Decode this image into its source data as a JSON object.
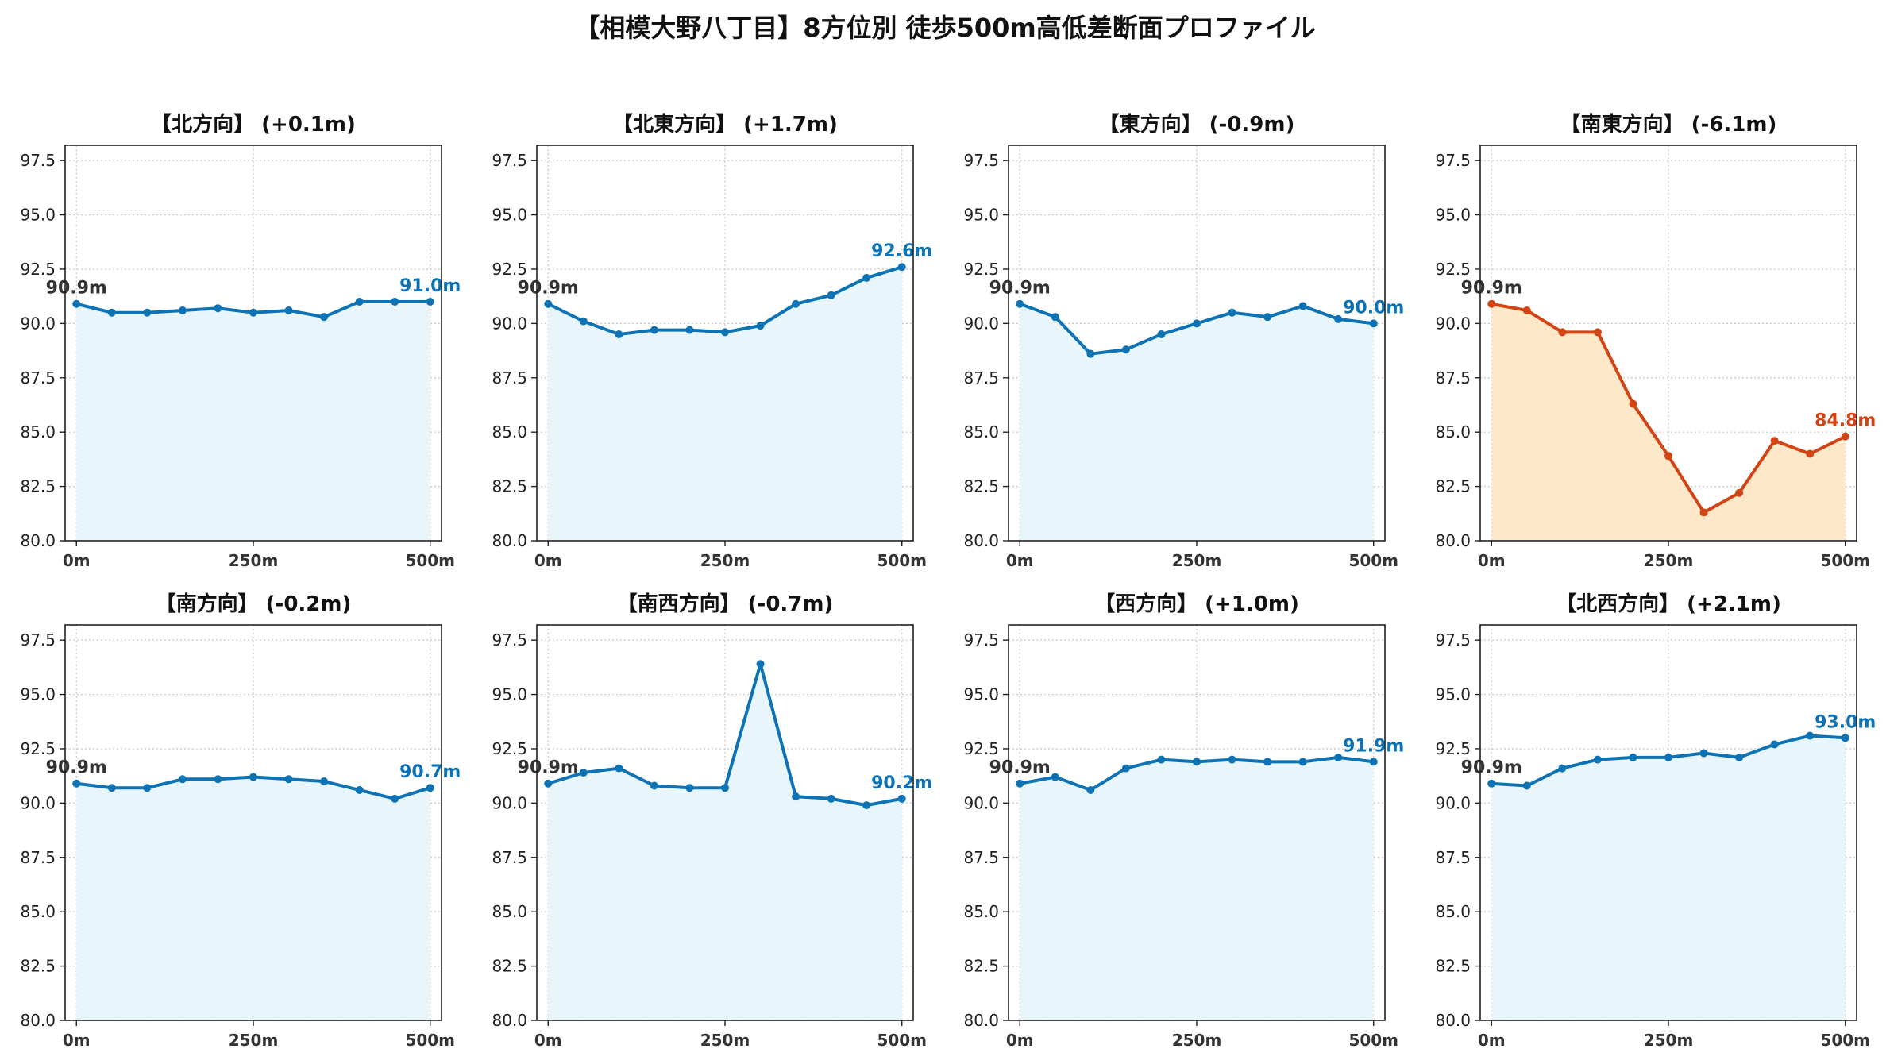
{
  "title": "【相模大野八丁目】8方位別 徒歩500m高低差断面プロファイル",
  "colors": {
    "normal_line": "#0d73b5",
    "normal_fill": "#e8f6fc",
    "alert_line": "#d34415",
    "alert_fill": "#fde8c9",
    "start_label": "#333333"
  },
  "axis": {
    "ylim": [
      80.0,
      98.2
    ],
    "yticks": [
      "80.0",
      "82.5",
      "85.0",
      "87.5",
      "90.0",
      "92.5",
      "95.0",
      "97.5"
    ],
    "ytick_values": [
      80.0,
      82.5,
      85.0,
      87.5,
      90.0,
      92.5,
      95.0,
      97.5
    ],
    "xlim": [
      -16,
      516
    ],
    "xticks": [
      "0m",
      "250m",
      "500m"
    ],
    "xtick_values": [
      0,
      250,
      500
    ],
    "grid": true
  },
  "chart_data": [
    {
      "type": "area",
      "title": "【北方向】 (+0.1m)",
      "alert": false,
      "x": [
        0,
        50,
        100,
        150,
        200,
        250,
        300,
        350,
        400,
        450,
        500
      ],
      "values": [
        90.9,
        90.5,
        90.5,
        90.6,
        90.7,
        90.5,
        90.6,
        90.3,
        91.0,
        91.0,
        91.0
      ],
      "start_label": "90.9m",
      "end_label": "91.0m"
    },
    {
      "type": "area",
      "title": "【北東方向】 (+1.7m)",
      "alert": false,
      "x": [
        0,
        50,
        100,
        150,
        200,
        250,
        300,
        350,
        400,
        450,
        500
      ],
      "values": [
        90.9,
        90.1,
        89.5,
        89.7,
        89.7,
        89.6,
        89.9,
        90.9,
        91.3,
        92.1,
        92.6
      ],
      "start_label": "90.9m",
      "end_label": "92.6m"
    },
    {
      "type": "area",
      "title": "【東方向】 (-0.9m)",
      "alert": false,
      "x": [
        0,
        50,
        100,
        150,
        200,
        250,
        300,
        350,
        400,
        450,
        500
      ],
      "values": [
        90.9,
        90.3,
        88.6,
        88.8,
        89.5,
        90.0,
        90.5,
        90.3,
        90.8,
        90.2,
        90.0
      ],
      "start_label": "90.9m",
      "end_label": "90.0m"
    },
    {
      "type": "area",
      "title": "【南東方向】 (-6.1m)",
      "alert": true,
      "x": [
        0,
        50,
        100,
        150,
        200,
        250,
        300,
        350,
        400,
        450,
        500
      ],
      "values": [
        90.9,
        90.6,
        89.6,
        89.6,
        86.3,
        83.9,
        81.3,
        82.2,
        84.6,
        84.0,
        84.8
      ],
      "start_label": "90.9m",
      "end_label": "84.8m"
    },
    {
      "type": "area",
      "title": "【南方向】 (-0.2m)",
      "alert": false,
      "x": [
        0,
        50,
        100,
        150,
        200,
        250,
        300,
        350,
        400,
        450,
        500
      ],
      "values": [
        90.9,
        90.7,
        90.7,
        91.1,
        91.1,
        91.2,
        91.1,
        91.0,
        90.6,
        90.2,
        90.7
      ],
      "start_label": "90.9m",
      "end_label": "90.7m"
    },
    {
      "type": "area",
      "title": "【南西方向】 (-0.7m)",
      "alert": false,
      "x": [
        0,
        50,
        100,
        150,
        200,
        250,
        300,
        350,
        400,
        450,
        500
      ],
      "values": [
        90.9,
        91.4,
        91.6,
        90.8,
        90.7,
        90.7,
        96.4,
        90.3,
        90.2,
        89.9,
        90.2
      ],
      "start_label": "90.9m",
      "end_label": "90.2m"
    },
    {
      "type": "area",
      "title": "【西方向】 (+1.0m)",
      "alert": false,
      "x": [
        0,
        50,
        100,
        150,
        200,
        250,
        300,
        350,
        400,
        450,
        500
      ],
      "values": [
        90.9,
        91.2,
        90.6,
        91.6,
        92.0,
        91.9,
        92.0,
        91.9,
        91.9,
        92.1,
        91.9
      ],
      "start_label": "90.9m",
      "end_label": "91.9m"
    },
    {
      "type": "area",
      "title": "【北西方向】 (+2.1m)",
      "alert": false,
      "x": [
        0,
        50,
        100,
        150,
        200,
        250,
        300,
        350,
        400,
        450,
        500
      ],
      "values": [
        90.9,
        90.8,
        91.6,
        92.0,
        92.1,
        92.1,
        92.3,
        92.1,
        92.7,
        93.1,
        93.0
      ],
      "start_label": "90.9m",
      "end_label": "93.0m"
    }
  ]
}
